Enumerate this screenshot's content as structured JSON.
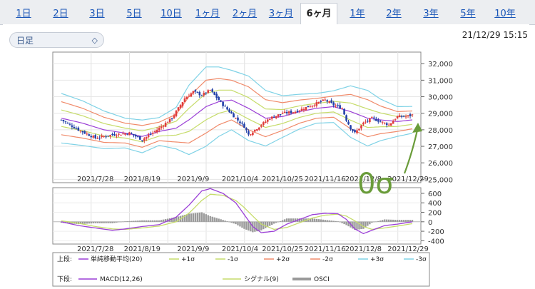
{
  "tabs": [
    "1日",
    "2日",
    "3日",
    "5日",
    "10日",
    "1ヶ月",
    "2ヶ月",
    "3ヶ月",
    "6ヶ月",
    "1年",
    "2年",
    "3年",
    "5年",
    "10年"
  ],
  "active_tab": "6ヶ月",
  "period_select": {
    "value": "日足"
  },
  "timestamp": "21/12/29 15:15",
  "annotation": "0σ",
  "colors": {
    "candle_up": "#e03c3c",
    "candle_down": "#2240a8",
    "sma": "#9b3fd6",
    "s1": "#c6dc6a",
    "s2": "#f08a6a",
    "s3": "#7fd2e6",
    "macd": "#9b3fd6",
    "signal": "#c6dc6a",
    "osci": "#9a9a9a",
    "annotation": "#6a9c3a"
  },
  "chart_data": [
    {
      "type": "candlestick",
      "title": "上段",
      "x_tick_labels": [
        "2021/7/28",
        "2021/8/19",
        "2021/9/9",
        "2021/10/4",
        "2021/10/25",
        "2021/11/16",
        "2021/12/8",
        "2021/12/29"
      ],
      "y_ticks": [
        "25,000",
        "26,000",
        "27,000",
        "28,000",
        "29,000",
        "30,000",
        "31,000",
        "32,000"
      ],
      "ylim": [
        24800,
        32700
      ],
      "legend": {
        "label": "上段:",
        "items": [
          {
            "name": "単純移動平均(20)",
            "color_key": "sma"
          },
          {
            "name": "+1σ",
            "color_key": "s1"
          },
          {
            "name": "-1σ",
            "color_key": "s1"
          },
          {
            "name": "+2σ",
            "color_key": "s2"
          },
          {
            "name": "-2σ",
            "color_key": "s2"
          },
          {
            "name": "+3σ",
            "color_key": "s3"
          },
          {
            "name": "-3σ",
            "color_key": "s3"
          }
        ]
      },
      "close_keyframes": [
        [
          0,
          28600
        ],
        [
          8,
          28000
        ],
        [
          16,
          27500
        ],
        [
          24,
          27700
        ],
        [
          32,
          27800
        ],
        [
          38,
          27400
        ],
        [
          44,
          27900
        ],
        [
          52,
          28700
        ],
        [
          58,
          29900
        ],
        [
          62,
          30300
        ],
        [
          66,
          30100
        ],
        [
          70,
          30400
        ],
        [
          76,
          29500
        ],
        [
          82,
          28700
        ],
        [
          86,
          28200
        ],
        [
          88,
          27700
        ],
        [
          92,
          28100
        ],
        [
          98,
          28700
        ],
        [
          104,
          29000
        ],
        [
          110,
          29100
        ],
        [
          116,
          29400
        ],
        [
          120,
          29600
        ],
        [
          124,
          29800
        ],
        [
          128,
          29500
        ],
        [
          132,
          29300
        ],
        [
          134,
          28600
        ],
        [
          136,
          28100
        ],
        [
          138,
          27800
        ],
        [
          142,
          28400
        ],
        [
          146,
          28700
        ],
        [
          150,
          28500
        ],
        [
          154,
          28300
        ],
        [
          158,
          28800
        ],
        [
          162,
          28800
        ],
        [
          165,
          28900
        ]
      ],
      "sma_keyframes": [
        [
          0,
          28700
        ],
        [
          10,
          28400
        ],
        [
          20,
          28000
        ],
        [
          30,
          27800
        ],
        [
          38,
          27600
        ],
        [
          46,
          27900
        ],
        [
          54,
          28100
        ],
        [
          60,
          28600
        ],
        [
          68,
          29400
        ],
        [
          74,
          29700
        ],
        [
          80,
          29800
        ],
        [
          88,
          29300
        ],
        [
          96,
          28700
        ],
        [
          104,
          28800
        ],
        [
          112,
          29100
        ],
        [
          120,
          29300
        ],
        [
          128,
          29400
        ],
        [
          136,
          29100
        ],
        [
          144,
          28700
        ],
        [
          150,
          28600
        ],
        [
          158,
          28500
        ],
        [
          165,
          28600
        ]
      ],
      "sigma_keyframes": [
        [
          0,
          500
        ],
        [
          10,
          450
        ],
        [
          20,
          380
        ],
        [
          30,
          300
        ],
        [
          38,
          330
        ],
        [
          46,
          280
        ],
        [
          54,
          420
        ],
        [
          60,
          700
        ],
        [
          68,
          800
        ],
        [
          74,
          700
        ],
        [
          80,
          600
        ],
        [
          88,
          650
        ],
        [
          96,
          560
        ],
        [
          104,
          420
        ],
        [
          112,
          350
        ],
        [
          120,
          300
        ],
        [
          128,
          320
        ],
        [
          136,
          520
        ],
        [
          144,
          560
        ],
        [
          150,
          420
        ],
        [
          158,
          300
        ],
        [
          165,
          270
        ]
      ]
    },
    {
      "type": "macd",
      "title": "下段",
      "x_tick_labels": [
        "2021/7/28",
        "2021/8/19",
        "2021/9/9",
        "2021/10/4",
        "2021/10/25",
        "2021/11/16",
        "2021/12/8",
        "2021/12/29"
      ],
      "y_ticks": [
        "600",
        "400",
        "200",
        "0",
        "-200",
        "-400"
      ],
      "ylim": [
        -470,
        720
      ],
      "legend": {
        "label": "下段:",
        "items": [
          {
            "name": "MACD(12,26)",
            "color_key": "macd"
          },
          {
            "name": "シグナル(9)",
            "color_key": "signal"
          },
          {
            "name": "OSCI",
            "color_key": "osci"
          }
        ]
      },
      "macd_keyframes": [
        [
          0,
          0
        ],
        [
          8,
          -80
        ],
        [
          16,
          -130
        ],
        [
          24,
          -180
        ],
        [
          30,
          -150
        ],
        [
          38,
          -100
        ],
        [
          46,
          -60
        ],
        [
          54,
          100
        ],
        [
          60,
          350
        ],
        [
          66,
          650
        ],
        [
          70,
          700
        ],
        [
          76,
          600
        ],
        [
          82,
          400
        ],
        [
          86,
          150
        ],
        [
          90,
          -100
        ],
        [
          94,
          -230
        ],
        [
          100,
          -200
        ],
        [
          106,
          -50
        ],
        [
          112,
          50
        ],
        [
          118,
          150
        ],
        [
          124,
          180
        ],
        [
          130,
          170
        ],
        [
          134,
          50
        ],
        [
          138,
          -150
        ],
        [
          142,
          -250
        ],
        [
          146,
          -180
        ],
        [
          152,
          -80
        ],
        [
          158,
          -50
        ],
        [
          165,
          0
        ]
      ],
      "signal_keyframes": [
        [
          0,
          20
        ],
        [
          8,
          -30
        ],
        [
          16,
          -100
        ],
        [
          24,
          -150
        ],
        [
          30,
          -160
        ],
        [
          38,
          -130
        ],
        [
          46,
          -90
        ],
        [
          54,
          0
        ],
        [
          60,
          180
        ],
        [
          66,
          450
        ],
        [
          70,
          580
        ],
        [
          76,
          560
        ],
        [
          82,
          450
        ],
        [
          86,
          300
        ],
        [
          90,
          120
        ],
        [
          94,
          -50
        ],
        [
          100,
          -160
        ],
        [
          106,
          -120
        ],
        [
          112,
          -20
        ],
        [
          118,
          80
        ],
        [
          124,
          140
        ],
        [
          130,
          160
        ],
        [
          134,
          120
        ],
        [
          138,
          20
        ],
        [
          142,
          -100
        ],
        [
          146,
          -160
        ],
        [
          152,
          -130
        ],
        [
          158,
          -90
        ],
        [
          165,
          -40
        ]
      ]
    }
  ]
}
